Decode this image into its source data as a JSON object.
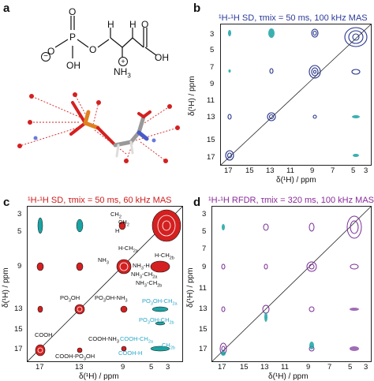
{
  "panels": {
    "a": {
      "label": "a"
    },
    "b": {
      "label": "b",
      "title": "¹H-¹H SD, τmix = 50 ms, 100 kHz MAS",
      "title_color": "#2b3a9a"
    },
    "c": {
      "label": "c",
      "title": "¹H-¹H SD, τmix = 50 ms, 60 kHz MAS",
      "title_color": "#d01a1a"
    },
    "d": {
      "label": "d",
      "title": "¹H-¹H RFDR, τmix = 320 ms, 100 kHz MAS",
      "title_color": "#8a2a9a"
    }
  },
  "axes": {
    "xlabel": "δ(¹H) / ppm",
    "ylabel": "δ(¹H) / ppm",
    "xticks": [
      "17",
      "15",
      "13",
      "11",
      "9",
      "7",
      "5",
      "3"
    ],
    "yticks": [
      "3",
      "5",
      "7",
      "9",
      "11",
      "13",
      "15",
      "17"
    ]
  },
  "molecule": {
    "atoms": {
      "O1": "O",
      "P": "P",
      "O2": "O",
      "O3": "O",
      "OH": "OH",
      "H1": "H",
      "H2": "H",
      "O4": "O",
      "OH2": "OH",
      "NH3": "NH",
      "sub3": "3",
      "minus": "−",
      "plus": "+"
    }
  },
  "annotations_c": {
    "ch2": "CH",
    "ch2_sub": "2",
    "ch2b": "CH",
    "ch2b_sub": "2",
    "h": "H",
    "h_ch2": "H-CH",
    "h_ch2_sub": "2a",
    "h_ch2b": "H-CH",
    "h_ch2b_sub": "2b",
    "nh3": "NH",
    "nh3_sub": "3",
    "nh3_h": "NH",
    "nh3_h_sub": "3",
    "nh3_h_tail": "-H",
    "nh3_ch2a": "NH",
    "nh3_ch2a_sub": "3",
    "nh3_ch2a_tail": "-CH",
    "nh3_ch2a_sub2": "2a",
    "nh3_ch2b": "NH",
    "nh3_ch2b_sub": "3",
    "nh3_ch2b_tail": "-CH",
    "nh3_ch2b_sub2": "2b",
    "po3oh": "PO",
    "po3oh_sub": "3",
    "po3oh_tail": "OH",
    "po3oh_nh3": "PO",
    "po3oh_nh3_sub": "3",
    "po3oh_nh3_tail": "OH-NH",
    "po3oh_nh3_sub2": "3",
    "po3oh_ch2": "PO",
    "po3oh_ch2_sub": "3",
    "po3oh_ch2_tail": "OH-CH",
    "po3oh_ch2_sub2": "2a",
    "po3oh_ch2b": "PO",
    "po3oh_ch2b_sub": "3",
    "po3oh_ch2b_tail": "OH-CH",
    "po3oh_ch2b_sub2": "2b",
    "cooh": "COOH",
    "cooh_nh3": "COOH-NH",
    "cooh_nh3_sub": "3",
    "cooh_h": "COOH-H",
    "cooh_ch2": "COOH-CH",
    "cooh_ch2_sub": "2a",
    "cooh_ch2b": "CH",
    "cooh_ch2b_sub": "2b",
    "cooh_po": "COOH-PO",
    "cooh_po_sub": "3",
    "cooh_po_tail": "OH"
  },
  "colors": {
    "navy": "#26348a",
    "teal": "#1aa3a3",
    "red": "#d42020",
    "purple": "#7a2e96",
    "cyan": "#2aa8c8"
  }
}
